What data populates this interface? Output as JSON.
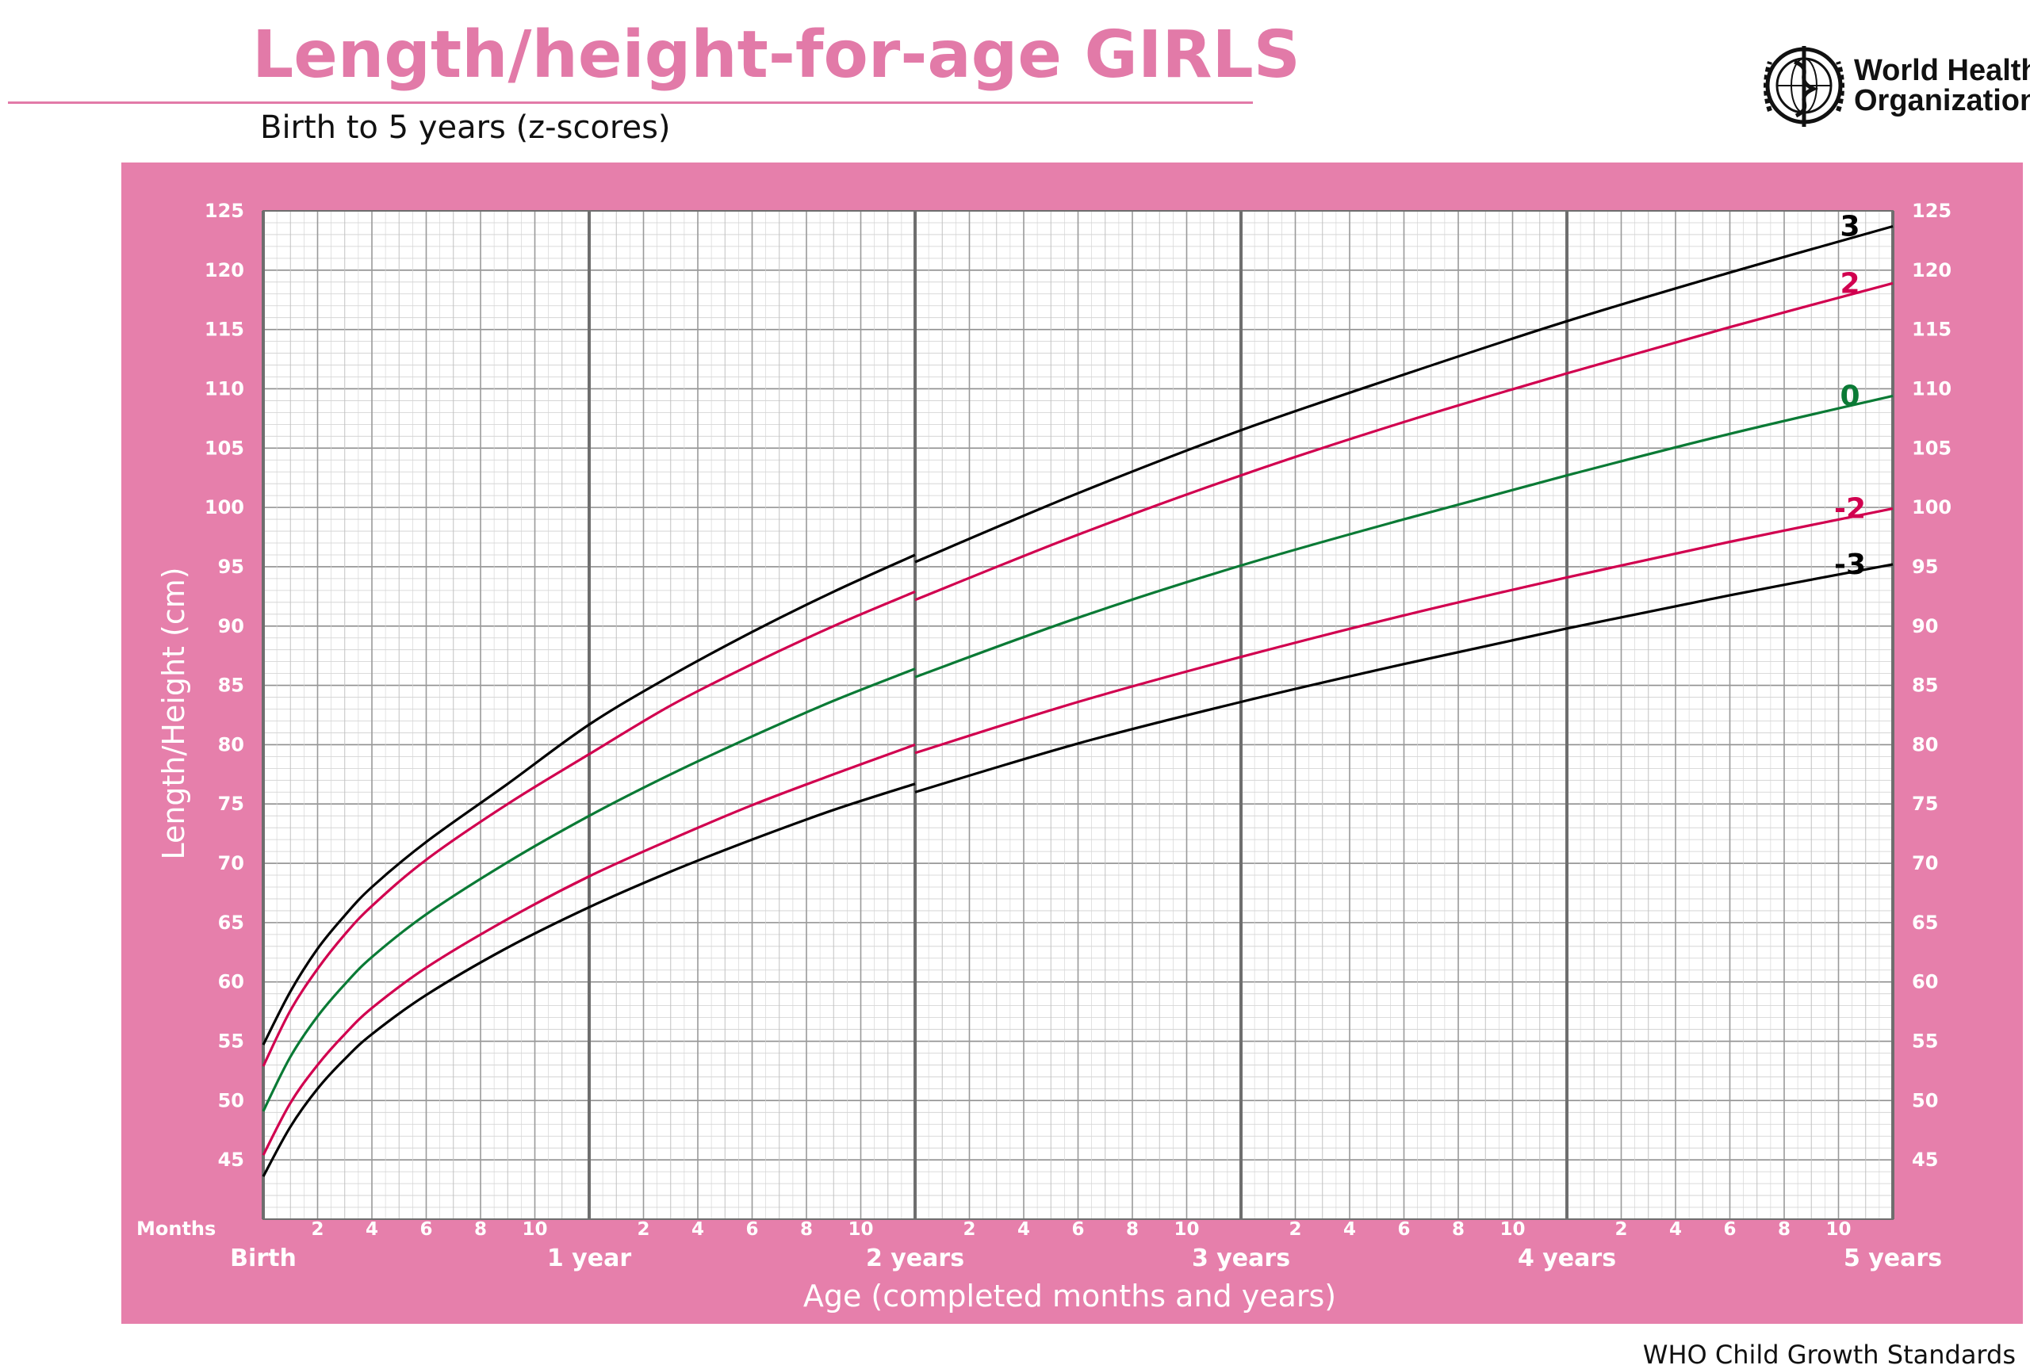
{
  "header": {
    "title": "Length/height-for-age GIRLS",
    "subtitle": "Birth to 5 years (z-scores)",
    "org_line1": "World Health",
    "org_line2": "Organization",
    "logo_icon": "who-emblem-icon"
  },
  "footer": {
    "text": "WHO Child Growth Standards"
  },
  "colors": {
    "title": "#e27aa8",
    "frame": "#e67fab",
    "plot_bg": "#ffffff",
    "z3": "#000000",
    "z2": "#d1004f",
    "z0": "#0a7a35"
  },
  "chart_data": {
    "type": "line",
    "xlabel": "Age (completed months and years)",
    "ylabel": "Length/Height (cm)",
    "xlim": [
      0,
      60
    ],
    "ylim": [
      40,
      125
    ],
    "x_major_labels": [
      {
        "month": 0,
        "label": "Birth"
      },
      {
        "month": 12,
        "label": "1 year"
      },
      {
        "month": 24,
        "label": "2 years"
      },
      {
        "month": 36,
        "label": "3 years"
      },
      {
        "month": 48,
        "label": "4 years"
      },
      {
        "month": 60,
        "label": "5 years"
      }
    ],
    "x_minor_label_prefix": "Months",
    "x_minor_labels": [
      "2",
      "4",
      "6",
      "8",
      "10"
    ],
    "y_ticks": [
      45,
      50,
      55,
      60,
      65,
      70,
      75,
      80,
      85,
      90,
      95,
      100,
      105,
      110,
      115,
      120,
      125
    ],
    "grid": true,
    "series": [
      {
        "name": "3",
        "color": "#000000",
        "x": [
          0,
          1,
          2,
          3,
          4,
          6,
          9,
          12,
          15,
          18,
          21,
          24,
          24,
          30,
          36,
          42,
          48,
          54,
          60
        ],
        "values": [
          54.7,
          59.2,
          62.8,
          65.6,
          68.0,
          71.8,
          76.7,
          81.7,
          85.8,
          89.5,
          92.9,
          96.0,
          95.4,
          101.2,
          106.5,
          111.2,
          115.7,
          119.8,
          123.7
        ]
      },
      {
        "name": "2",
        "color": "#d1004f",
        "x": [
          0,
          1,
          2,
          3,
          4,
          6,
          9,
          12,
          15,
          18,
          21,
          24,
          24,
          30,
          36,
          42,
          48,
          54,
          60
        ],
        "values": [
          52.9,
          57.6,
          61.1,
          64.0,
          66.4,
          70.3,
          75.0,
          79.2,
          83.3,
          86.8,
          90.0,
          92.9,
          92.2,
          97.7,
          102.7,
          107.2,
          111.3,
          115.2,
          118.9
        ]
      },
      {
        "name": "0",
        "color": "#0a7a35",
        "x": [
          0,
          1,
          2,
          3,
          4,
          6,
          9,
          12,
          15,
          18,
          21,
          24,
          24,
          30,
          36,
          42,
          48,
          54,
          60
        ],
        "values": [
          49.1,
          53.7,
          57.1,
          59.8,
          62.1,
          65.7,
          70.1,
          74.0,
          77.5,
          80.7,
          83.7,
          86.4,
          85.7,
          90.7,
          95.1,
          99.0,
          102.7,
          106.2,
          109.4
        ]
      },
      {
        "name": "-2",
        "color": "#d1004f",
        "x": [
          0,
          1,
          2,
          3,
          4,
          6,
          9,
          12,
          15,
          18,
          21,
          24,
          24,
          30,
          36,
          42,
          48,
          54,
          60
        ],
        "values": [
          45.4,
          49.8,
          53.0,
          55.6,
          57.8,
          61.2,
          65.3,
          68.9,
          72.0,
          74.9,
          77.5,
          80.0,
          79.3,
          83.6,
          87.4,
          90.9,
          94.1,
          97.1,
          99.9
        ]
      },
      {
        "name": "-3",
        "color": "#000000",
        "x": [
          0,
          1,
          2,
          3,
          4,
          6,
          9,
          12,
          15,
          18,
          21,
          24,
          24,
          30,
          36,
          42,
          48,
          54,
          60
        ],
        "values": [
          43.6,
          47.8,
          51.0,
          53.5,
          55.6,
          58.9,
          62.9,
          66.3,
          69.3,
          72.0,
          74.5,
          76.7,
          76.0,
          80.1,
          83.6,
          86.8,
          89.8,
          92.6,
          95.2
        ]
      }
    ]
  }
}
